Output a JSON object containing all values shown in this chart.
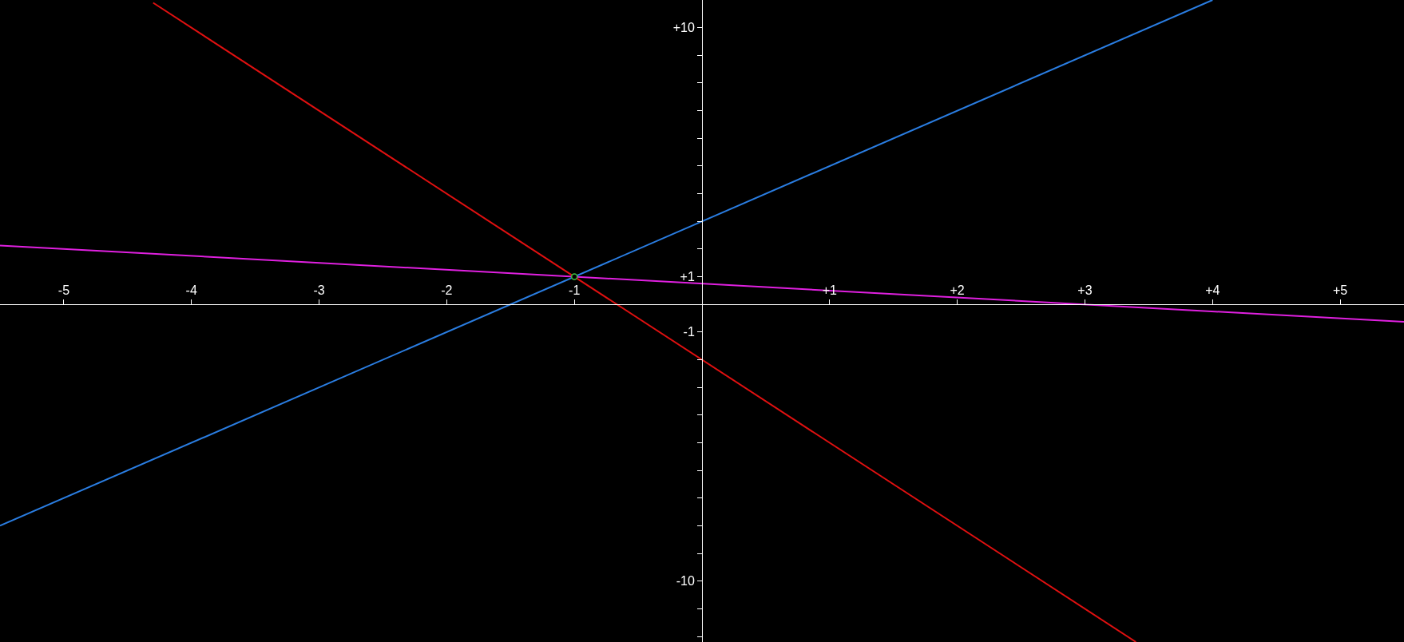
{
  "chart_data": {
    "type": "line",
    "xlim": [
      -5.5,
      5.5
    ],
    "ylim": [
      -12.2,
      11
    ],
    "xticks": [
      -5,
      -4,
      -3,
      -2,
      -1,
      {
        "value": 1,
        "label": "+1"
      },
      {
        "value": 2,
        "label": "+2"
      },
      {
        "value": 3,
        "label": "+3"
      },
      {
        "value": 4,
        "label": "+4"
      },
      {
        "value": 5,
        "label": "+5"
      }
    ],
    "yticks": [
      {
        "value": -12,
        "label": null
      },
      {
        "value": -11,
        "label": null
      },
      -10,
      {
        "value": -9,
        "label": null
      },
      {
        "value": -8,
        "label": null
      },
      {
        "value": -7,
        "label": null
      },
      {
        "value": -6,
        "label": null
      },
      {
        "value": -5,
        "label": null
      },
      {
        "value": -4,
        "label": null
      },
      {
        "value": -3,
        "label": null
      },
      {
        "value": -2,
        "label": null
      },
      -1,
      {
        "value": 1,
        "label": "+1"
      },
      {
        "value": 2,
        "label": null
      },
      {
        "value": 3,
        "label": null
      },
      {
        "value": 4,
        "label": null
      },
      {
        "value": 5,
        "label": null
      },
      {
        "value": 6,
        "label": null
      },
      {
        "value": 7,
        "label": null
      },
      {
        "value": 8,
        "label": null
      },
      {
        "value": 9,
        "label": null
      },
      {
        "value": 10,
        "label": "+10"
      }
    ],
    "grid": false,
    "legend": false,
    "line_style": "solid",
    "series": [
      {
        "color": "#e01010",
        "x": [
          -4.3,
          3.4
        ],
        "values": [
          10.9,
          -12.2
        ]
      },
      {
        "color": "#2a7de1",
        "x": [
          -5.5,
          4
        ],
        "values": [
          -8,
          11
        ]
      },
      {
        "color": "#e020e0",
        "x": [
          -5.5,
          5.5
        ],
        "values": [
          2.13,
          -0.63
        ]
      },
      {
        "type": "scatter",
        "marker": "circle",
        "color": "#40c040",
        "x": [
          -1
        ],
        "values": [
          1
        ]
      }
    ]
  }
}
